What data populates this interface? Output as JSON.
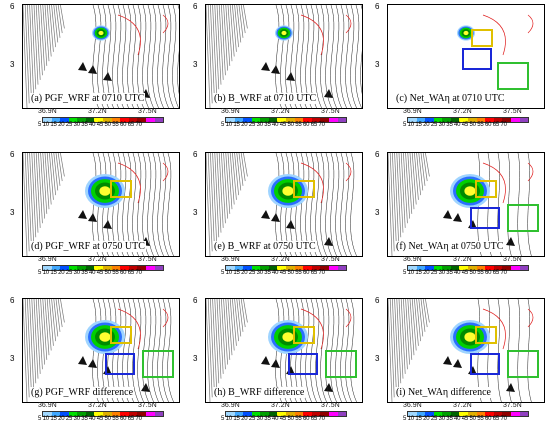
{
  "figure": {
    "y_tick_top": "6",
    "y_tick_mid": "3",
    "lat_labels": [
      "36.9N",
      "37.2N",
      "37.5N"
    ],
    "colorbar_labels": "5 10 15 20 25 30 35 40 45 50 55 60 65 70",
    "colorbar_colors": [
      "#a0d8ff",
      "#40a8ff",
      "#0050ff",
      "#00e000",
      "#00a000",
      "#006400",
      "#ffff00",
      "#e0b000",
      "#ff8000",
      "#ff0000",
      "#c00000",
      "#900000",
      "#ff00ff",
      "#9040c0"
    ],
    "panels": [
      {
        "caption": "(a)  PGF_WRF at 0710 UTC"
      },
      {
        "caption": "(b)  B_WRF at 0710 UTC"
      },
      {
        "caption": "(c)  Net_WAη at 0710 UTC"
      },
      {
        "caption": "(d)  PGF_WRF at 0750 UTC"
      },
      {
        "caption": "(e)  B_WRF at 0750 UTC"
      },
      {
        "caption": "(f)  Net_WAη at 0750 UTC"
      },
      {
        "caption": "(g)  PGF_WRF difference"
      },
      {
        "caption": "(h)  B_WRF difference"
      },
      {
        "caption": "(i)  Net_WAη difference"
      }
    ]
  }
}
